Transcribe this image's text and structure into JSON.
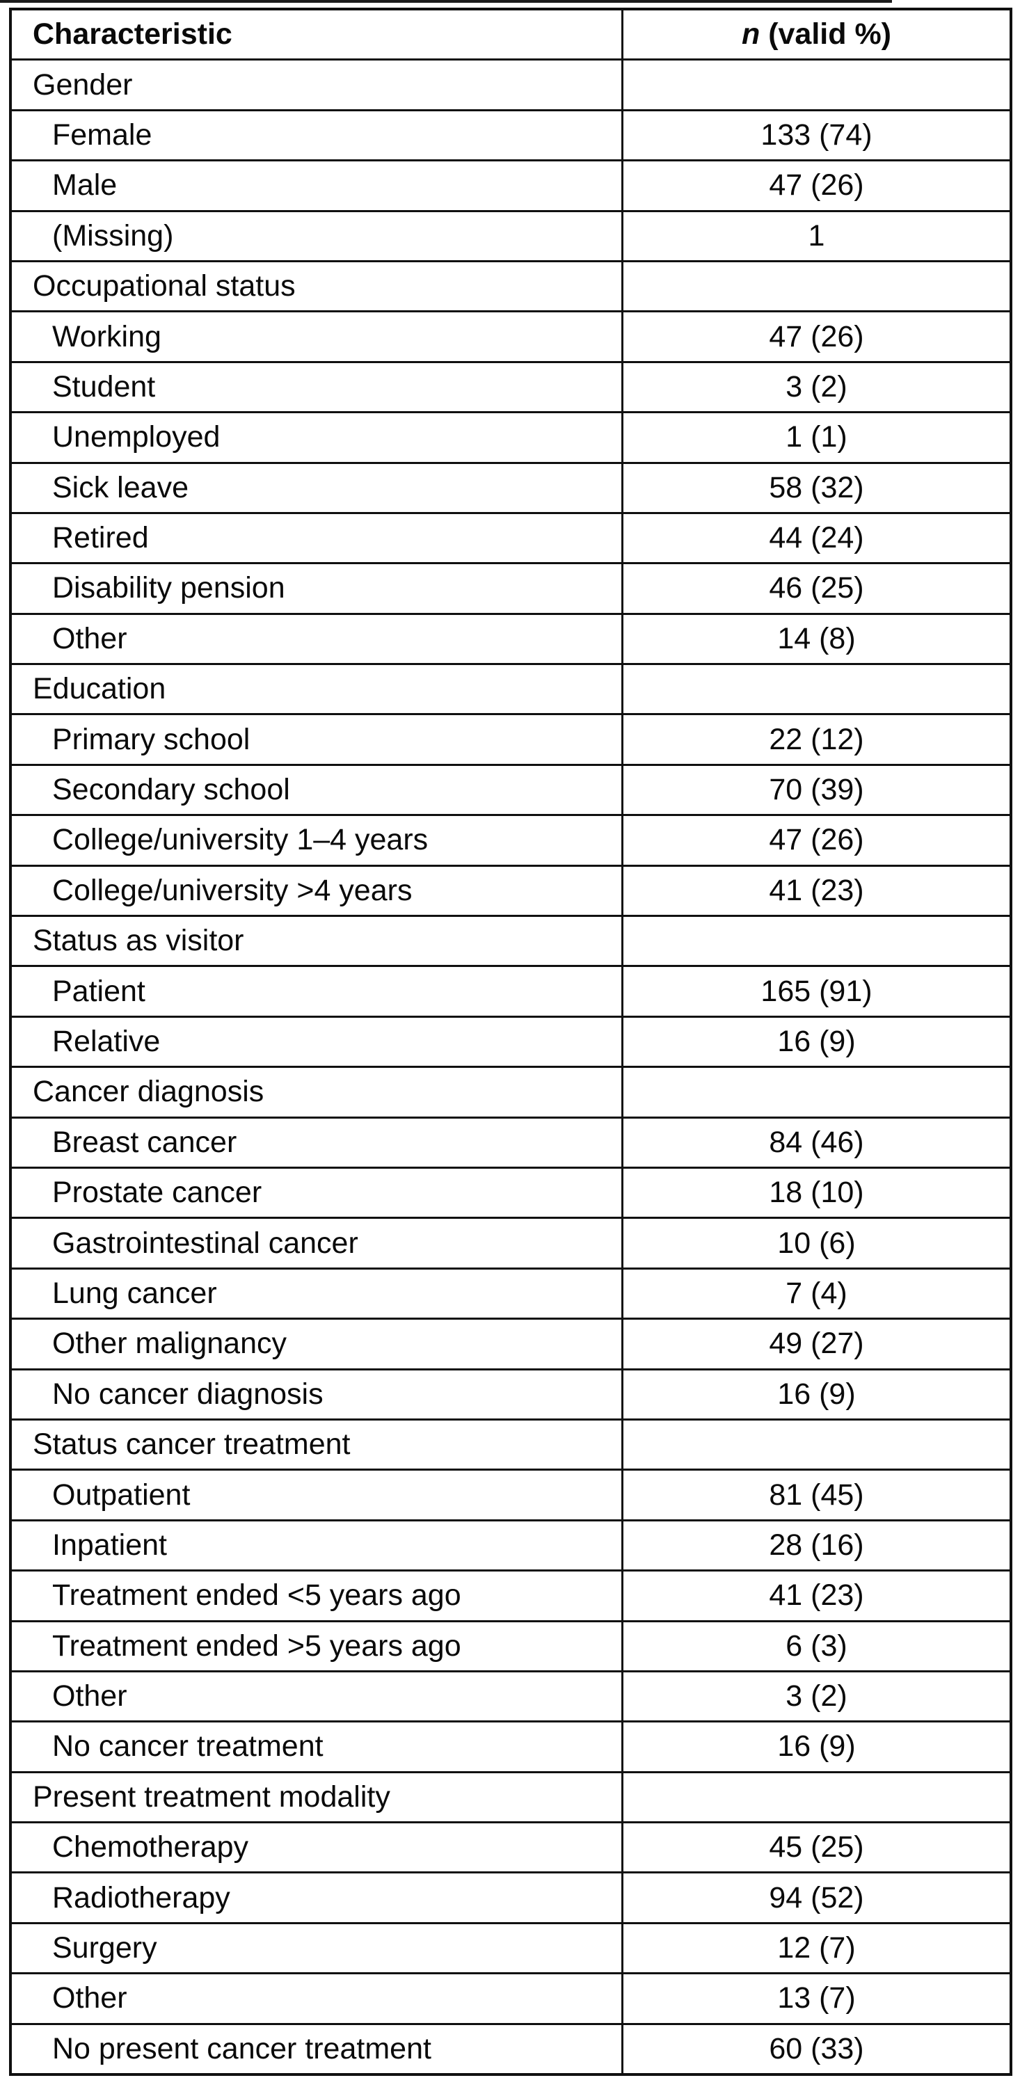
{
  "page": {
    "background_color": "#ffffff",
    "border_color": "#101010",
    "text_color": "#0a0a0a"
  },
  "table": {
    "columns": [
      "Characteristic",
      "n (valid %)"
    ],
    "header": {
      "characteristic": "Characteristic",
      "n_italic": "n",
      "n_rest": " (valid %)"
    },
    "rows": [
      {
        "type": "category",
        "label": "Gender",
        "value": ""
      },
      {
        "type": "item",
        "label": "Female",
        "value": "133 (74)"
      },
      {
        "type": "item",
        "label": "Male",
        "value": "47 (26)"
      },
      {
        "type": "item",
        "label": "(Missing)",
        "value": "1"
      },
      {
        "type": "category",
        "label": "Occupational status",
        "value": ""
      },
      {
        "type": "item",
        "label": "Working",
        "value": "47 (26)"
      },
      {
        "type": "item",
        "label": "Student",
        "value": "3 (2)"
      },
      {
        "type": "item",
        "label": "Unemployed",
        "value": "1 (1)"
      },
      {
        "type": "item",
        "label": "Sick leave",
        "value": "58 (32)"
      },
      {
        "type": "item",
        "label": "Retired",
        "value": "44 (24)"
      },
      {
        "type": "item",
        "label": "Disability pension",
        "value": "46 (25)"
      },
      {
        "type": "item",
        "label": "Other",
        "value": "14 (8)"
      },
      {
        "type": "category",
        "label": "Education",
        "value": ""
      },
      {
        "type": "item",
        "label": "Primary school",
        "value": "22 (12)"
      },
      {
        "type": "item",
        "label": "Secondary school",
        "value": "70 (39)"
      },
      {
        "type": "item",
        "label": "College/university 1–4 years",
        "value": "47 (26)"
      },
      {
        "type": "item",
        "label": "College/university >4 years",
        "value": "41 (23)"
      },
      {
        "type": "category",
        "label": "Status as visitor",
        "value": ""
      },
      {
        "type": "item",
        "label": "Patient",
        "value": "165 (91)"
      },
      {
        "type": "item",
        "label": "Relative",
        "value": "16 (9)"
      },
      {
        "type": "category",
        "label": "Cancer diagnosis",
        "value": ""
      },
      {
        "type": "item",
        "label": "Breast cancer",
        "value": "84 (46)"
      },
      {
        "type": "item",
        "label": "Prostate cancer",
        "value": "18 (10)"
      },
      {
        "type": "item",
        "label": "Gastrointestinal cancer",
        "value": "10 (6)"
      },
      {
        "type": "item",
        "label": "Lung cancer",
        "value": "7 (4)"
      },
      {
        "type": "item",
        "label": "Other malignancy",
        "value": "49 (27)"
      },
      {
        "type": "item",
        "label": "No cancer diagnosis",
        "value": "16 (9)"
      },
      {
        "type": "category",
        "label": "Status cancer treatment",
        "value": ""
      },
      {
        "type": "item",
        "label": "Outpatient",
        "value": "81 (45)"
      },
      {
        "type": "item",
        "label": "Inpatient",
        "value": "28 (16)"
      },
      {
        "type": "item",
        "label": "Treatment ended <5 years ago",
        "value": "41 (23)"
      },
      {
        "type": "item",
        "label": "Treatment ended >5 years ago",
        "value": "6 (3)"
      },
      {
        "type": "item",
        "label": "Other",
        "value": "3 (2)"
      },
      {
        "type": "item",
        "label": "No cancer treatment",
        "value": "16 (9)"
      },
      {
        "type": "category",
        "label": "Present treatment modality",
        "value": ""
      },
      {
        "type": "item",
        "label": "Chemotherapy",
        "value": "45 (25)"
      },
      {
        "type": "item",
        "label": "Radiotherapy",
        "value": "94 (52)"
      },
      {
        "type": "item",
        "label": "Surgery",
        "value": "12 (7)"
      },
      {
        "type": "item",
        "label": "Other",
        "value": "13 (7)"
      },
      {
        "type": "item",
        "label": "No present cancer treatment",
        "value": "60 (33)"
      }
    ]
  }
}
